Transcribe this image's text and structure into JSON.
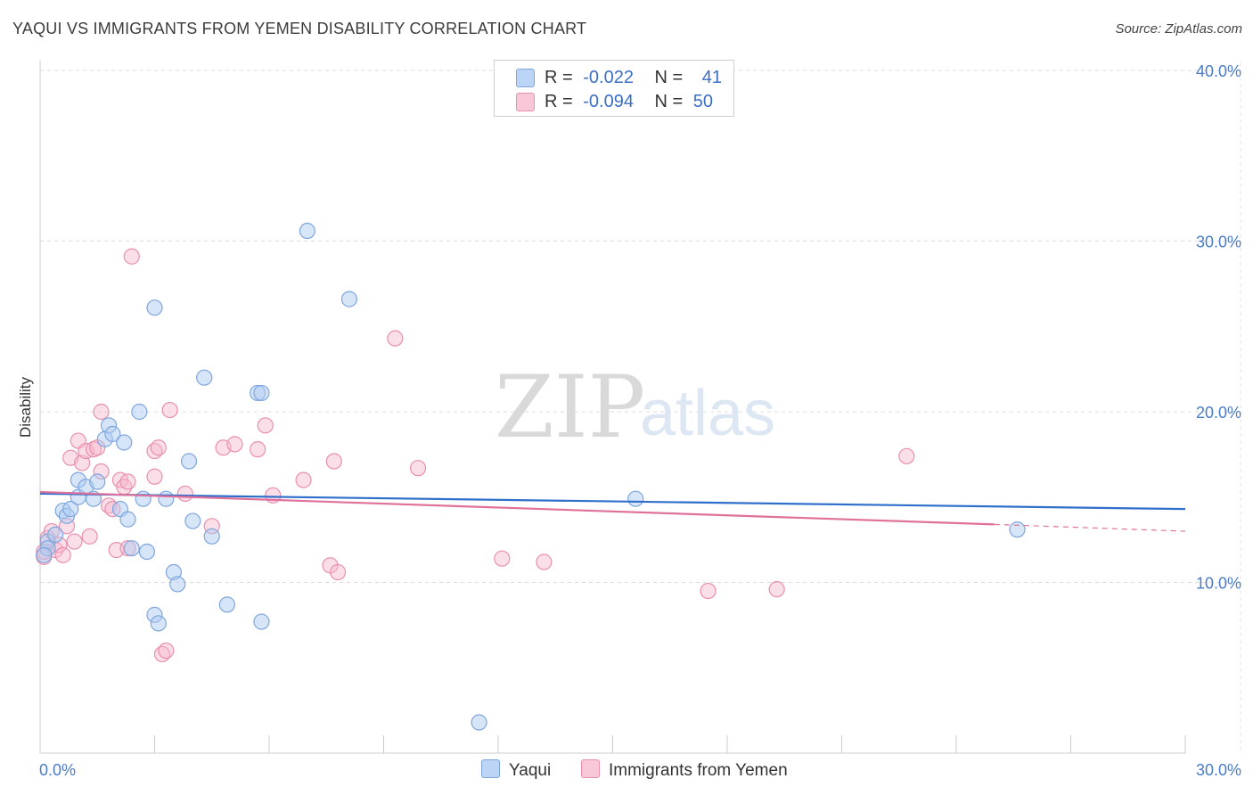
{
  "header": {
    "title": "YAQUI VS IMMIGRANTS FROM YEMEN DISABILITY CORRELATION CHART",
    "source": "Source: ZipAtlas.com"
  },
  "legend": {
    "row1": {
      "r_label": "R =",
      "r_value": "-0.022",
      "n_label": "N =",
      "n_value": "41"
    },
    "row2": {
      "r_label": "R =",
      "r_value": "-0.094",
      "n_label": "N =",
      "n_value": "50"
    }
  },
  "bottom_legend": {
    "series1": "Yaqui",
    "series2": "Immigrants from Yemen"
  },
  "watermark": {
    "zip": "ZIP",
    "atlas": "atlas"
  },
  "colors": {
    "yaqui_fill": "#aecbf2",
    "yaqui_stroke": "#7fa6dc",
    "yaqui_line": "#2f6fcc",
    "yemen_fill": "#f6b9cd",
    "yemen_stroke": "#e98fae",
    "yemen_line": "#e0719a",
    "tick_text": "#4a7cc7"
  },
  "chart_data": {
    "type": "scatter",
    "title": "YAQUI VS IMMIGRANTS FROM YEMEN DISABILITY CORRELATION CHART",
    "xlabel": "",
    "ylabel": "Disability",
    "xlim": [
      0,
      30
    ],
    "ylim": [
      0,
      40
    ],
    "x_tick_labels": [
      "0.0%",
      "30.0%"
    ],
    "y_ticks": [
      10,
      20,
      30,
      40
    ],
    "y_tick_labels": [
      "10.0%",
      "20.0%",
      "30.0%",
      "40.0%"
    ],
    "grid": true,
    "legend_position": "top-center",
    "series": [
      {
        "name": "Yaqui",
        "r": -0.022,
        "n": 41,
        "trend": {
          "x": [
            0,
            30
          ],
          "y": [
            15.2,
            14.3
          ]
        },
        "points": [
          [
            0.2,
            12.4
          ],
          [
            0.2,
            12.0
          ],
          [
            0.4,
            12.8
          ],
          [
            0.6,
            14.2
          ],
          [
            0.7,
            13.9
          ],
          [
            0.8,
            14.3
          ],
          [
            1.0,
            15.0
          ],
          [
            1.0,
            16.0
          ],
          [
            1.2,
            15.6
          ],
          [
            1.4,
            14.9
          ],
          [
            1.5,
            15.9
          ],
          [
            1.7,
            18.4
          ],
          [
            1.8,
            19.2
          ],
          [
            1.9,
            18.7
          ],
          [
            2.1,
            14.3
          ],
          [
            2.2,
            18.2
          ],
          [
            2.3,
            13.7
          ],
          [
            2.4,
            12.0
          ],
          [
            2.6,
            20.0
          ],
          [
            2.7,
            14.9
          ],
          [
            2.8,
            11.8
          ],
          [
            3.0,
            8.1
          ],
          [
            3.0,
            26.1
          ],
          [
            3.1,
            7.6
          ],
          [
            3.3,
            14.9
          ],
          [
            3.5,
            10.6
          ],
          [
            3.6,
            9.9
          ],
          [
            3.9,
            17.1
          ],
          [
            4.0,
            13.6
          ],
          [
            4.3,
            22.0
          ],
          [
            4.5,
            12.7
          ],
          [
            4.9,
            8.7
          ],
          [
            5.7,
            21.1
          ],
          [
            5.8,
            21.1
          ],
          [
            5.8,
            7.7
          ],
          [
            7.0,
            30.6
          ],
          [
            8.1,
            26.6
          ],
          [
            11.5,
            1.8
          ],
          [
            15.6,
            14.9
          ],
          [
            25.6,
            13.1
          ],
          [
            0.1,
            11.6
          ]
        ]
      },
      {
        "name": "Immigrants from Yemen",
        "r": -0.094,
        "n": 50,
        "trend": {
          "x": [
            0,
            25
          ],
          "y": [
            15.3,
            13.4
          ],
          "dashed_to": [
            30,
            13.0
          ]
        },
        "points": [
          [
            0.1,
            11.5
          ],
          [
            0.2,
            12.6
          ],
          [
            0.3,
            13.0
          ],
          [
            0.4,
            11.9
          ],
          [
            0.5,
            12.2
          ],
          [
            0.6,
            11.6
          ],
          [
            0.7,
            13.3
          ],
          [
            0.8,
            17.3
          ],
          [
            0.9,
            12.4
          ],
          [
            1.0,
            18.3
          ],
          [
            1.1,
            17.0
          ],
          [
            1.2,
            17.7
          ],
          [
            1.3,
            12.7
          ],
          [
            1.4,
            17.8
          ],
          [
            1.5,
            17.9
          ],
          [
            1.6,
            16.5
          ],
          [
            1.6,
            20.0
          ],
          [
            1.8,
            14.5
          ],
          [
            1.9,
            14.3
          ],
          [
            2.0,
            11.9
          ],
          [
            2.1,
            16.0
          ],
          [
            2.2,
            15.6
          ],
          [
            2.3,
            12.0
          ],
          [
            2.3,
            15.9
          ],
          [
            2.4,
            29.1
          ],
          [
            3.0,
            17.7
          ],
          [
            3.0,
            16.2
          ],
          [
            3.1,
            17.9
          ],
          [
            3.2,
            5.8
          ],
          [
            3.3,
            6.0
          ],
          [
            3.4,
            20.1
          ],
          [
            3.8,
            15.2
          ],
          [
            4.5,
            13.3
          ],
          [
            4.8,
            17.9
          ],
          [
            5.1,
            18.1
          ],
          [
            5.7,
            17.8
          ],
          [
            5.9,
            19.2
          ],
          [
            6.1,
            15.1
          ],
          [
            6.9,
            16.0
          ],
          [
            7.6,
            11.0
          ],
          [
            7.7,
            17.1
          ],
          [
            7.8,
            10.6
          ],
          [
            9.3,
            24.3
          ],
          [
            9.9,
            16.7
          ],
          [
            12.1,
            11.4
          ],
          [
            13.2,
            11.2
          ],
          [
            17.5,
            9.5
          ],
          [
            19.3,
            9.6
          ],
          [
            22.7,
            17.4
          ],
          [
            0.1,
            11.8
          ]
        ]
      }
    ]
  }
}
